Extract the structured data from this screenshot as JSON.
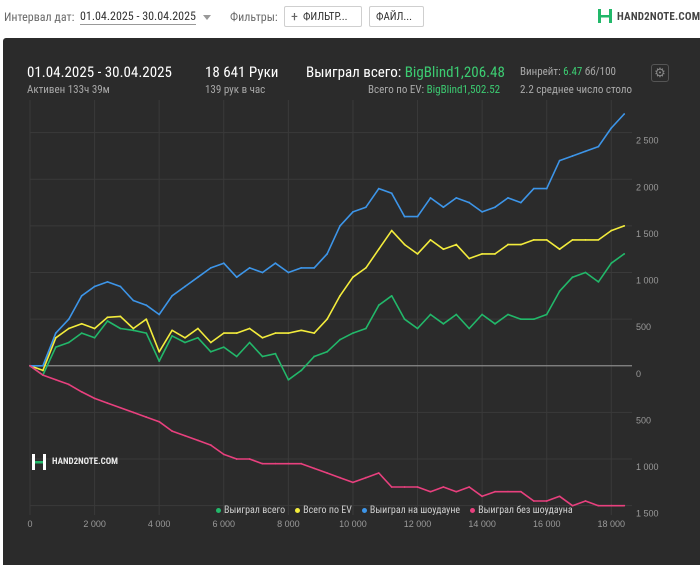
{
  "toolbar": {
    "interval_label": "Интервал дат:",
    "date_range": "01.04.2025 - 30.04.2025",
    "filters_label": "Фильтры:",
    "filter_button": "ФИЛЬТР...",
    "file_button": "ФАЙЛ..."
  },
  "brand": {
    "name": "HAND2NOTE.COM"
  },
  "stats": {
    "period": "01.04.2025 - 30.04.2025",
    "active": "Активен 133ч 39м",
    "hands": "18 641 Руки",
    "hands_per_hour": "139 рук в час",
    "won_total_label": "Выиграл всего:",
    "won_total_value": "BigBlind1,206.48",
    "ev_total_label": "Всего по EV:",
    "ev_total_value": "BigBlind1,502.52",
    "winrate_label": "Винрейт:",
    "winrate_value": "6.47",
    "winrate_unit": "бб/100",
    "avg_table": "2.2 среднее число столо"
  },
  "colors": {
    "panel_bg": "#2b2b2b",
    "green": "#22b86a",
    "yellow": "#f3ec3c",
    "blue": "#3d95e8",
    "red": "#e8407e"
  },
  "chart_data": {
    "type": "line",
    "xlim": [
      0,
      18641
    ],
    "ylim": [
      -1600,
      2850
    ],
    "x_ticks": [
      0,
      2000,
      4000,
      6000,
      8000,
      10000,
      12000,
      14000,
      16000,
      18000
    ],
    "x_tick_labels": [
      "0",
      "2 000",
      "4 000",
      "6 000",
      "8 000",
      "10 000",
      "12 000",
      "14 000",
      "16 000",
      "18 000"
    ],
    "y_ticks": [
      2500,
      2000,
      1500,
      1000,
      500,
      0,
      -500,
      -1000,
      -1500
    ],
    "y_tick_labels": [
      "2 500",
      "2 000",
      "1 500",
      "1 000",
      "500",
      "0",
      "500",
      "1 000",
      "1 500"
    ],
    "grid": true,
    "legend_position": "bottom-right",
    "x": [
      0,
      400,
      800,
      1200,
      1600,
      2000,
      2400,
      2800,
      3200,
      3600,
      4000,
      4400,
      4800,
      5200,
      5600,
      6000,
      6400,
      6800,
      7200,
      7600,
      8000,
      8400,
      8800,
      9200,
      9600,
      10000,
      10400,
      10800,
      11200,
      11600,
      12000,
      12400,
      12800,
      13200,
      13600,
      14000,
      14400,
      14800,
      15200,
      15600,
      16000,
      16400,
      16800,
      17200,
      17600,
      18000,
      18400
    ],
    "series": [
      {
        "name": "Выиграл всего",
        "color": "#22b86a",
        "values": [
          0,
          -100,
          200,
          250,
          350,
          300,
          480,
          400,
          380,
          350,
          50,
          320,
          250,
          300,
          150,
          200,
          100,
          250,
          100,
          130,
          -150,
          -50,
          100,
          150,
          280,
          350,
          400,
          650,
          750,
          500,
          400,
          550,
          450,
          550,
          400,
          550,
          450,
          550,
          500,
          500,
          550,
          800,
          950,
          1000,
          900,
          1100,
          1200
        ]
      },
      {
        "name": "Всего по EV",
        "color": "#f3ec3c",
        "values": [
          0,
          -50,
          300,
          400,
          450,
          400,
          520,
          530,
          400,
          500,
          150,
          380,
          300,
          400,
          250,
          350,
          350,
          400,
          300,
          350,
          350,
          380,
          350,
          500,
          750,
          950,
          1050,
          1250,
          1450,
          1300,
          1200,
          1350,
          1250,
          1300,
          1150,
          1200,
          1200,
          1300,
          1300,
          1350,
          1350,
          1250,
          1350,
          1350,
          1350,
          1450,
          1500
        ]
      },
      {
        "name": "Выиграл на шоудауне",
        "color": "#3d95e8",
        "values": [
          0,
          0,
          350,
          500,
          750,
          850,
          900,
          850,
          700,
          650,
          550,
          750,
          850,
          950,
          1050,
          1100,
          950,
          1050,
          1000,
          1100,
          1000,
          1050,
          1050,
          1200,
          1500,
          1650,
          1700,
          1900,
          1850,
          1600,
          1600,
          1800,
          1700,
          1800,
          1750,
          1650,
          1700,
          1800,
          1750,
          1900,
          1900,
          2200,
          2250,
          2300,
          2350,
          2550,
          2700
        ]
      },
      {
        "name": "Выиграл без шоудауна",
        "color": "#e8407e",
        "values": [
          0,
          -100,
          -150,
          -200,
          -280,
          -350,
          -400,
          -450,
          -500,
          -550,
          -600,
          -700,
          -750,
          -800,
          -850,
          -950,
          -1000,
          -1000,
          -1050,
          -1050,
          -1050,
          -1050,
          -1100,
          -1150,
          -1200,
          -1250,
          -1200,
          -1150,
          -1300,
          -1300,
          -1300,
          -1350,
          -1300,
          -1350,
          -1300,
          -1400,
          -1350,
          -1350,
          -1350,
          -1450,
          -1450,
          -1400,
          -1500,
          -1450,
          -1500,
          -1500,
          -1500
        ]
      }
    ]
  }
}
